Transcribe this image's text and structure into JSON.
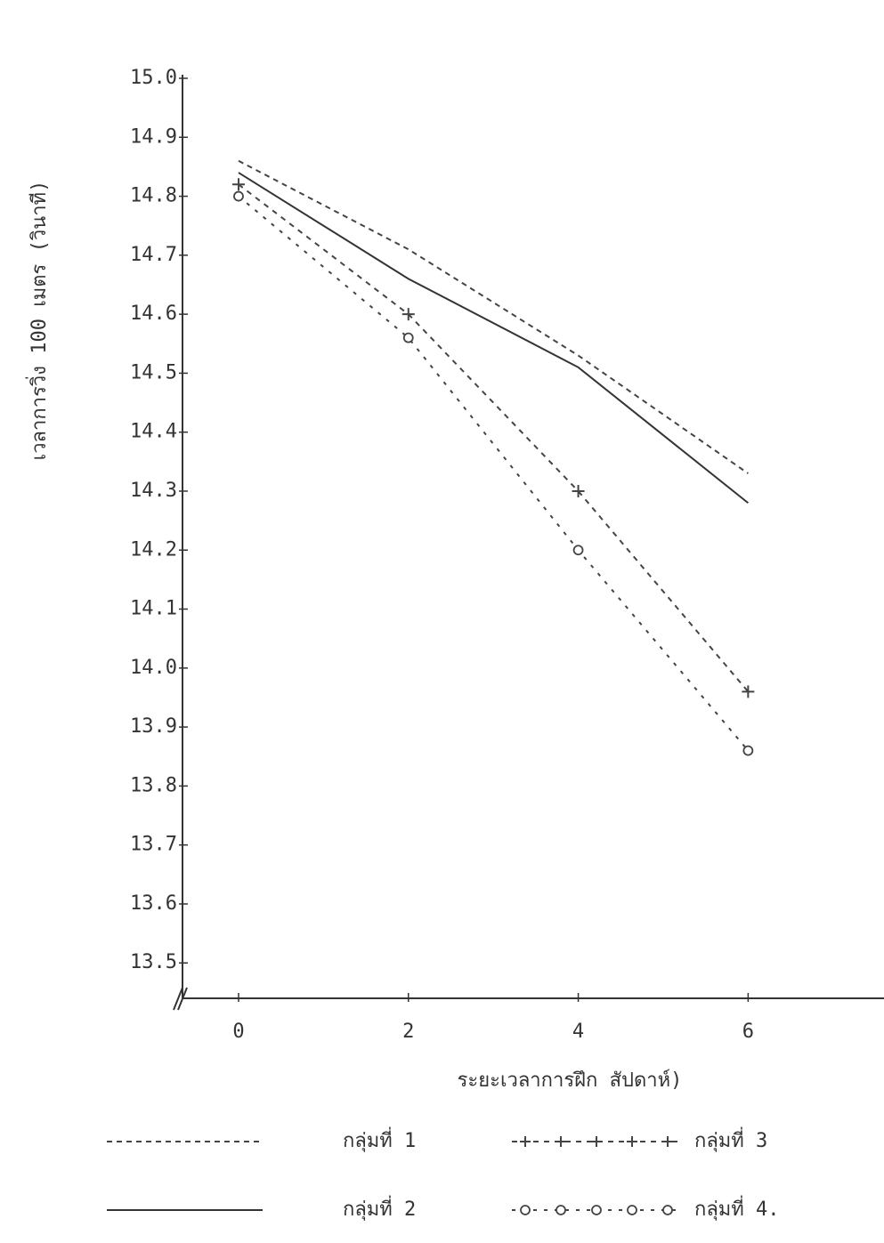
{
  "chart_data": {
    "type": "line",
    "y_label": "เวลาการวิ่ง 100 เมตร (วินาที)",
    "x_label": "ระยะเวลาการฝึก สัปดาห์)",
    "x": [
      0,
      2,
      4,
      6
    ],
    "xlim": [
      -0.66,
      7.6
    ],
    "xticks": [
      0,
      2,
      4,
      6
    ],
    "ylim": [
      13.44,
      15.0
    ],
    "yticks": [
      13.5,
      13.6,
      13.7,
      13.8,
      13.9,
      {
        "value": 14,
        "label": "14.0"
      },
      14.1,
      14.2,
      14.3,
      14.4,
      14.5,
      14.6,
      14.7,
      14.8,
      14.9,
      {
        "value": 15,
        "label": "15.0"
      }
    ],
    "grid": false,
    "series": [
      {
        "name": "กลุ่มที่ 1",
        "color": "#444",
        "dash": "6 5",
        "marker": "none",
        "values": [
          14.86,
          14.71,
          14.53,
          14.33
        ]
      },
      {
        "name": "กลุ่มที่ 2",
        "color": "#333",
        "dash": "none",
        "marker": "none",
        "values": [
          14.84,
          14.66,
          14.51,
          14.28
        ]
      },
      {
        "name": "กลุ่มที่ 3",
        "color": "#444",
        "dash": "6 6",
        "marker": "plus",
        "values": [
          14.82,
          14.6,
          14.3,
          13.96
        ]
      },
      {
        "name": "กลุ่มที่ 4.",
        "color": "#444",
        "dash": "4 8",
        "marker": "circle",
        "values": [
          14.8,
          14.56,
          14.2,
          13.86
        ]
      }
    ]
  }
}
